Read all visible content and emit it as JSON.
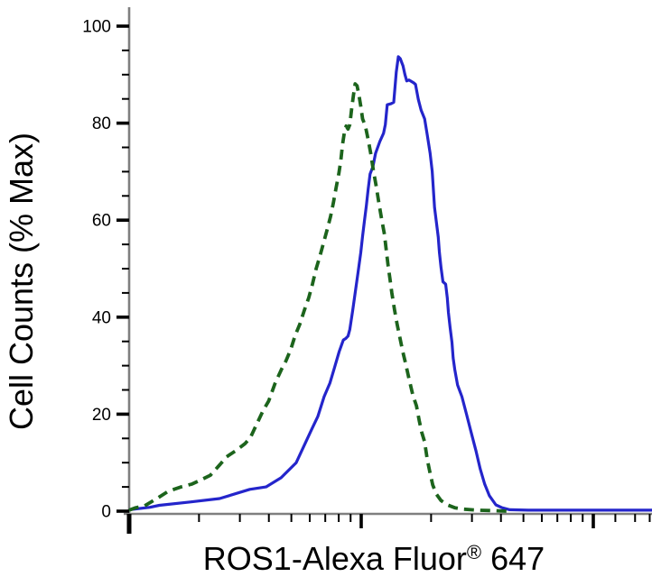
{
  "figure": {
    "background": "#ffffff",
    "text_color": "#000000",
    "axis_line_color": "#7f7f7f",
    "tick_color": "#000000"
  },
  "chart_data": {
    "type": "line",
    "title": "",
    "xlabel": "ROS1-Alexa Fluor® 647",
    "xlabel_parts": {
      "main": "ROS1-Alexa Fluor",
      "sup": "®",
      "suffix": " 647"
    },
    "ylabel": "Cell Counts (% Max)",
    "legend": "none",
    "grid": "off",
    "y_axis": {
      "ticks": [
        0,
        20,
        40,
        60,
        80,
        100
      ],
      "tick_labels": [
        "0",
        "20",
        "40",
        "60",
        "80",
        "100"
      ],
      "minor_step": 5,
      "range": [
        0,
        100
      ]
    },
    "x_axis": {
      "scale": "log",
      "decades_visible": 2.275,
      "major_tick_decades": [
        0,
        1,
        2
      ],
      "minor_tick_rule": "log10(2..9) inside each full decade",
      "extra_minor_tick_decades": [
        2.095,
        2.18,
        2.243
      ],
      "tick_labels": []
    },
    "series": [
      {
        "name": "solid-blue-curve",
        "color": "#2425cb",
        "line_style": "solid",
        "stroke_width": 3.2,
        "peak_percent_max": 93.7,
        "points": [
          [
            0.0,
            0.3
          ],
          [
            0.09,
            0.8
          ],
          [
            0.13,
            1.2
          ],
          [
            0.263,
            1.9
          ],
          [
            0.39,
            2.6
          ],
          [
            0.52,
            4.5
          ],
          [
            0.59,
            5.0
          ],
          [
            0.655,
            6.9
          ],
          [
            0.72,
            10.0
          ],
          [
            0.785,
            16.7
          ],
          [
            0.813,
            19.5
          ],
          [
            0.84,
            23.6
          ],
          [
            0.865,
            26.4
          ],
          [
            0.885,
            29.6
          ],
          [
            0.905,
            32.9
          ],
          [
            0.923,
            35.3
          ],
          [
            0.933,
            35.6
          ],
          [
            0.943,
            36.1
          ],
          [
            0.951,
            37.5
          ],
          [
            0.963,
            41.3
          ],
          [
            0.974,
            45.0
          ],
          [
            0.986,
            49.1
          ],
          [
            0.998,
            53.3
          ],
          [
            1.006,
            56.7
          ],
          [
            1.014,
            59.9
          ],
          [
            1.022,
            63.0
          ],
          [
            1.03,
            66.4
          ],
          [
            1.038,
            69.5
          ],
          [
            1.05,
            71.0
          ],
          [
            1.062,
            73.8
          ],
          [
            1.08,
            76.2
          ],
          [
            1.096,
            77.9
          ],
          [
            1.104,
            79.7
          ],
          [
            1.112,
            83.8
          ],
          [
            1.128,
            84.0
          ],
          [
            1.14,
            84.3
          ],
          [
            1.151,
            90.5
          ],
          [
            1.16,
            93.7
          ],
          [
            1.168,
            93.3
          ],
          [
            1.18,
            91.8
          ],
          [
            1.188,
            90.1
          ],
          [
            1.196,
            88.7
          ],
          [
            1.206,
            88.9
          ],
          [
            1.226,
            88.3
          ],
          [
            1.234,
            88.0
          ],
          [
            1.246,
            84.9
          ],
          [
            1.258,
            82.7
          ],
          [
            1.273,
            80.9
          ],
          [
            1.285,
            77.5
          ],
          [
            1.297,
            73.8
          ],
          [
            1.306,
            70.1
          ],
          [
            1.316,
            62.6
          ],
          [
            1.324,
            59.5
          ],
          [
            1.332,
            56.5
          ],
          [
            1.337,
            53.3
          ],
          [
            1.344,
            50.2
          ],
          [
            1.352,
            47.3
          ],
          [
            1.364,
            46.8
          ],
          [
            1.371,
            44.0
          ],
          [
            1.376,
            40.9
          ],
          [
            1.383,
            37.9
          ],
          [
            1.391,
            34.8
          ],
          [
            1.396,
            31.6
          ],
          [
            1.403,
            29.2
          ],
          [
            1.415,
            26.0
          ],
          [
            1.434,
            23.6
          ],
          [
            1.454,
            19.9
          ],
          [
            1.474,
            16.2
          ],
          [
            1.494,
            12.5
          ],
          [
            1.513,
            8.7
          ],
          [
            1.532,
            5.6
          ],
          [
            1.552,
            3.2
          ],
          [
            1.58,
            1.3
          ],
          [
            1.607,
            0.7
          ],
          [
            1.64,
            0.3
          ],
          [
            1.72,
            0.2
          ],
          [
            1.87,
            0.2
          ],
          [
            2.03,
            0.2
          ],
          [
            2.15,
            0.2
          ],
          [
            2.275,
            0.2
          ]
        ]
      },
      {
        "name": "dashed-green-curve",
        "color": "#1c641c",
        "line_style": "dashed",
        "stroke_width": 3.8,
        "dash_pattern": "11 7",
        "peak_percent_max": 88.1,
        "points": [
          [
            0.0,
            0.2
          ],
          [
            0.028,
            0.7
          ],
          [
            0.067,
            1.1
          ],
          [
            0.126,
            2.8
          ],
          [
            0.169,
            4.1
          ],
          [
            0.224,
            5.0
          ],
          [
            0.271,
            5.6
          ],
          [
            0.303,
            6.3
          ],
          [
            0.35,
            7.4
          ],
          [
            0.393,
            9.7
          ],
          [
            0.42,
            11.2
          ],
          [
            0.46,
            12.5
          ],
          [
            0.499,
            13.9
          ],
          [
            0.523,
            15.2
          ],
          [
            0.55,
            18.0
          ],
          [
            0.578,
            20.8
          ],
          [
            0.601,
            22.7
          ],
          [
            0.629,
            26.4
          ],
          [
            0.656,
            29.2
          ],
          [
            0.676,
            31.0
          ],
          [
            0.696,
            33.3
          ],
          [
            0.715,
            36.2
          ],
          [
            0.735,
            38.5
          ],
          [
            0.754,
            41.3
          ],
          [
            0.774,
            44.0
          ],
          [
            0.79,
            46.8
          ],
          [
            0.806,
            50.0
          ],
          [
            0.821,
            52.4
          ],
          [
            0.837,
            55.2
          ],
          [
            0.853,
            58.0
          ],
          [
            0.868,
            60.8
          ],
          [
            0.88,
            63.6
          ],
          [
            0.892,
            66.7
          ],
          [
            0.904,
            69.7
          ],
          [
            0.912,
            72.3
          ],
          [
            0.92,
            75.7
          ],
          [
            0.927,
            77.9
          ],
          [
            0.935,
            79.4
          ],
          [
            0.943,
            78.8
          ],
          [
            0.951,
            79.7
          ],
          [
            0.959,
            83.1
          ],
          [
            0.967,
            85.9
          ],
          [
            0.974,
            88.1
          ],
          [
            0.982,
            87.7
          ],
          [
            0.99,
            85.9
          ],
          [
            0.998,
            83.5
          ],
          [
            1.006,
            80.9
          ],
          [
            1.018,
            79.4
          ],
          [
            1.03,
            76.6
          ],
          [
            1.041,
            73.8
          ],
          [
            1.053,
            70.1
          ],
          [
            1.065,
            66.9
          ],
          [
            1.076,
            63.6
          ],
          [
            1.088,
            60.2
          ],
          [
            1.1,
            57.1
          ],
          [
            1.108,
            53.7
          ],
          [
            1.116,
            50.6
          ],
          [
            1.124,
            47.8
          ],
          [
            1.132,
            45.0
          ],
          [
            1.143,
            41.6
          ],
          [
            1.155,
            38.5
          ],
          [
            1.167,
            35.7
          ],
          [
            1.179,
            32.9
          ],
          [
            1.191,
            30.5
          ],
          [
            1.206,
            27.3
          ],
          [
            1.222,
            24.0
          ],
          [
            1.238,
            21.7
          ],
          [
            1.25,
            18.6
          ],
          [
            1.261,
            16.2
          ],
          [
            1.273,
            14.3
          ],
          [
            1.285,
            10.6
          ],
          [
            1.297,
            7.8
          ],
          [
            1.308,
            5.4
          ],
          [
            1.324,
            3.5
          ],
          [
            1.344,
            2.2
          ],
          [
            1.371,
            1.3
          ],
          [
            1.403,
            0.7
          ],
          [
            1.442,
            0.4
          ],
          [
            1.501,
            0.2
          ],
          [
            1.58,
            0.1
          ],
          [
            1.627,
            0.0
          ]
        ]
      }
    ]
  }
}
